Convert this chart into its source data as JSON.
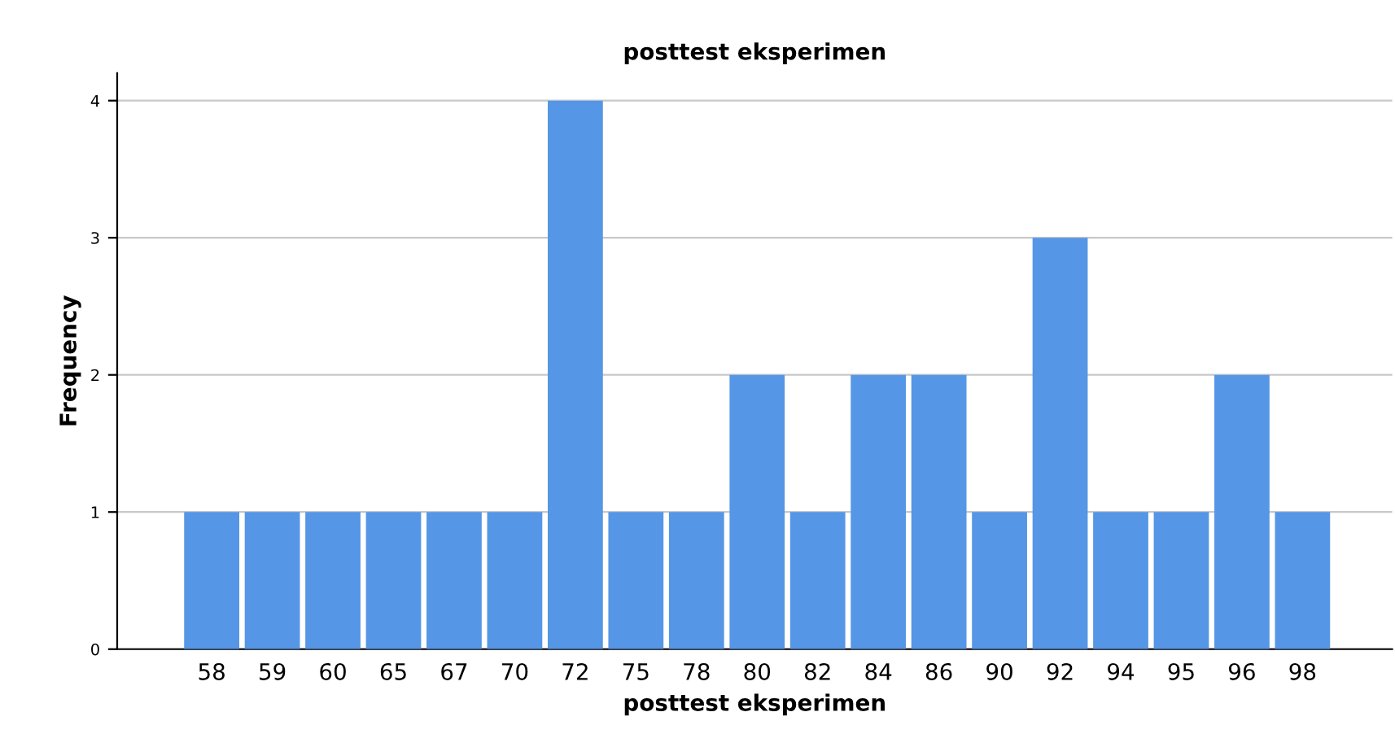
{
  "chart_data": {
    "type": "bar",
    "title": "posttest eksperimen",
    "xlabel": "posttest eksperimen",
    "ylabel": "Frequency",
    "categories": [
      "58",
      "59",
      "60",
      "65",
      "67",
      "70",
      "72",
      "75",
      "78",
      "80",
      "82",
      "84",
      "86",
      "90",
      "92",
      "94",
      "95",
      "96",
      "98"
    ],
    "values": [
      1,
      1,
      1,
      1,
      1,
      1,
      4,
      1,
      1,
      2,
      1,
      2,
      2,
      1,
      3,
      1,
      1,
      2,
      1
    ],
    "color": "#5596e6",
    "ylim": [
      0,
      4.2
    ],
    "yticks": [
      0,
      1,
      2,
      3,
      4
    ],
    "grid": "y",
    "legend": false
  }
}
